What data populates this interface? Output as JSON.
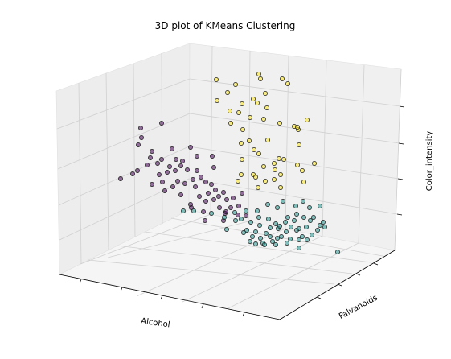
{
  "chart_data": {
    "type": "scatter3d",
    "title": "3D plot of KMeans Clustering",
    "xlabel": "Alcohol",
    "ylabel": "Falvanoids",
    "zlabel": "Color_intensity",
    "grid": true,
    "projection": "3d",
    "colors": {
      "cluster_0": "#440154",
      "cluster_1": "#21918c",
      "cluster_2": "#fde725",
      "edge": "#1a1a1a"
    },
    "point_alpha": 0.55,
    "series": [
      {
        "cluster": 0,
        "points": [
          [
            175,
            159
          ],
          [
            201,
            153
          ],
          [
            176,
            171
          ],
          [
            172,
            180
          ],
          [
            189,
            188
          ],
          [
            187,
            196
          ],
          [
            214,
            185
          ],
          [
            237,
            183
          ],
          [
            201,
            198
          ],
          [
            219,
            198
          ],
          [
            227,
            200
          ],
          [
            245,
            194
          ],
          [
            264,
            194
          ],
          [
            183,
            205
          ],
          [
            196,
            203
          ],
          [
            211,
            207
          ],
          [
            225,
            206
          ],
          [
            165,
            216
          ],
          [
            171,
            212
          ],
          [
            198,
            217
          ],
          [
            208,
            214
          ],
          [
            218,
            212
          ],
          [
            233,
            211
          ],
          [
            245,
            212
          ],
          [
            150,
            222
          ],
          [
            189,
            229
          ],
          [
            202,
            226
          ],
          [
            221,
            225
          ],
          [
            230,
            228
          ],
          [
            240,
            223
          ],
          [
            250,
            220
          ],
          [
            266,
            208
          ],
          [
            205,
            237
          ],
          [
            215,
            232
          ],
          [
            243,
            232
          ],
          [
            256,
            226
          ],
          [
            225,
            242
          ],
          [
            248,
            244
          ],
          [
            259,
            240
          ],
          [
            268,
            236
          ],
          [
            278,
            239
          ],
          [
            272,
            244
          ],
          [
            282,
            248
          ],
          [
            290,
            246
          ],
          [
            301,
            240
          ],
          [
            256,
            250
          ],
          [
            266,
            248
          ],
          [
            237,
            254
          ],
          [
            273,
            258
          ],
          [
            287,
            258
          ],
          [
            297,
            256
          ],
          [
            253,
            263
          ],
          [
            280,
            265
          ],
          [
            296,
            267
          ],
          [
            255,
            274
          ],
          [
            306,
            268
          ],
          [
            278,
            274
          ],
          [
            238,
            258
          ],
          [
            263,
            229
          ],
          [
            281,
            263
          ]
        ]
      },
      {
        "cluster": 1,
        "points": [
          [
            228,
            262
          ],
          [
            241,
            262
          ],
          [
            263,
            265
          ],
          [
            279,
            270
          ],
          [
            292,
            264
          ],
          [
            306,
            262
          ],
          [
            300,
            272
          ],
          [
            320,
            262
          ],
          [
            333,
            254
          ],
          [
            345,
            258
          ],
          [
            352,
            250
          ],
          [
            368,
            256
          ],
          [
            377,
            250
          ],
          [
            385,
            258
          ],
          [
            398,
            256
          ],
          [
            312,
            276
          ],
          [
            323,
            280
          ],
          [
            334,
            272
          ],
          [
            343,
            278
          ],
          [
            355,
            276
          ],
          [
            366,
            274
          ],
          [
            378,
            270
          ],
          [
            390,
            270
          ],
          [
            402,
            276
          ],
          [
            307,
            286
          ],
          [
            318,
            288
          ],
          [
            331,
            290
          ],
          [
            346,
            284
          ],
          [
            356,
            288
          ],
          [
            369,
            286
          ],
          [
            381,
            282
          ],
          [
            395,
            286
          ],
          [
            404,
            282
          ],
          [
            339,
            300
          ],
          [
            350,
            294
          ],
          [
            361,
            297
          ],
          [
            376,
            294
          ],
          [
            388,
            292
          ],
          [
            398,
            280
          ],
          [
            311,
            300
          ],
          [
            324,
            296
          ],
          [
            336,
            294
          ],
          [
            327,
            302
          ],
          [
            345,
            296
          ],
          [
            372,
            298
          ],
          [
            382,
            298
          ],
          [
            318,
            303
          ],
          [
            329,
            304
          ],
          [
            343,
            304
          ],
          [
            357,
            302
          ],
          [
            372,
            308
          ],
          [
            420,
            313
          ],
          [
            282,
            285
          ],
          [
            303,
            289
          ],
          [
            293,
            274
          ],
          [
            362,
            282
          ],
          [
            372,
            284
          ],
          [
            348,
            281
          ],
          [
            369,
            266
          ],
          [
            386,
            274
          ],
          [
            358,
            270
          ],
          [
            314,
            294
          ],
          [
            336,
            283
          ],
          [
            322,
            270
          ]
        ]
      },
      {
        "cluster": 2,
        "points": [
          [
            269,
            99
          ],
          [
            322,
            92
          ],
          [
            324,
            98
          ],
          [
            293,
            105
          ],
          [
            351,
            98
          ],
          [
            358,
            104
          ],
          [
            283,
            115
          ],
          [
            330,
            116
          ],
          [
            270,
            125
          ],
          [
            301,
            129
          ],
          [
            315,
            123
          ],
          [
            286,
            138
          ],
          [
            297,
            140
          ],
          [
            320,
            128
          ],
          [
            332,
            134
          ],
          [
            311,
            146
          ],
          [
            287,
            153
          ],
          [
            302,
            161
          ],
          [
            348,
            153
          ],
          [
            366,
            157
          ],
          [
            371,
            161
          ],
          [
            382,
            149
          ],
          [
            328,
            148
          ],
          [
            370,
            158
          ],
          [
            310,
            175
          ],
          [
            333,
            174
          ],
          [
            300,
            178
          ],
          [
            316,
            186
          ],
          [
            322,
            191
          ],
          [
            372,
            180
          ],
          [
            347,
            197
          ],
          [
            341,
            203
          ],
          [
            328,
            207
          ],
          [
            301,
            198
          ],
          [
            342,
            211
          ],
          [
            349,
            217
          ],
          [
            370,
            205
          ],
          [
            391,
            203
          ],
          [
            330,
            225
          ],
          [
            315,
            217
          ],
          [
            300,
            217
          ],
          [
            353,
            198
          ],
          [
            376,
            212
          ],
          [
            296,
            225
          ],
          [
            318,
            220
          ],
          [
            341,
            223
          ],
          [
            321,
            233
          ],
          [
            378,
            226
          ],
          [
            349,
            233
          ]
        ]
      }
    ]
  }
}
